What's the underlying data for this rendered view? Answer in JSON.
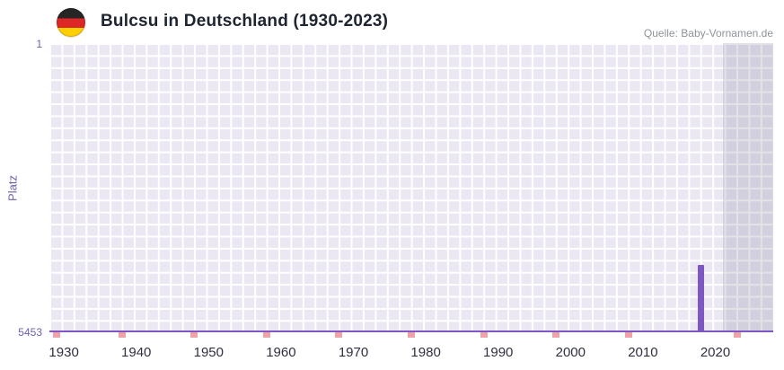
{
  "header": {
    "title": "Bulcsu in Deutschland (1930-2023)",
    "source": "Quelle: Baby-Vornamen.de",
    "flag_icon": "german-flag-icon"
  },
  "chart_data": {
    "type": "bar",
    "title": "Bulcsu in Deutschland (1930-2023)",
    "xlabel": "",
    "ylabel": "Platz",
    "y_axis": {
      "top_label": "1",
      "bottom_label": "5453",
      "min": 1,
      "max": 5453,
      "inverted": true
    },
    "x_axis": {
      "min": 1928,
      "max": 2028,
      "ticks": [
        1930,
        1940,
        1950,
        1960,
        1970,
        1980,
        1990,
        2000,
        2010,
        2020
      ]
    },
    "bars": [
      {
        "year": 2018,
        "rank": 4180
      }
    ],
    "baseline_marker_years": [
      1929,
      1938,
      1948,
      1958,
      1968,
      1978,
      1988,
      1998,
      2008,
      2023
    ],
    "highlight_region": {
      "start_year": 2021,
      "end_year": 2028
    },
    "grid": true,
    "legend": false
  },
  "colors": {
    "bar": "#7e57c2",
    "axis_line": "#7e57c2",
    "marker_pink": "#f0a1a9",
    "plot_bg": "#ebe8f4",
    "grid": "#ffffff",
    "highlight_overlay": "rgba(125,123,145,0.22)",
    "y_text": "#6f5fb0",
    "x_text": "#2f3040",
    "title_text": "#1e2430",
    "source_text": "#8f939b",
    "flag_black": "#262626",
    "flag_red": "#dd2727",
    "flag_gold": "#ffcf00"
  }
}
